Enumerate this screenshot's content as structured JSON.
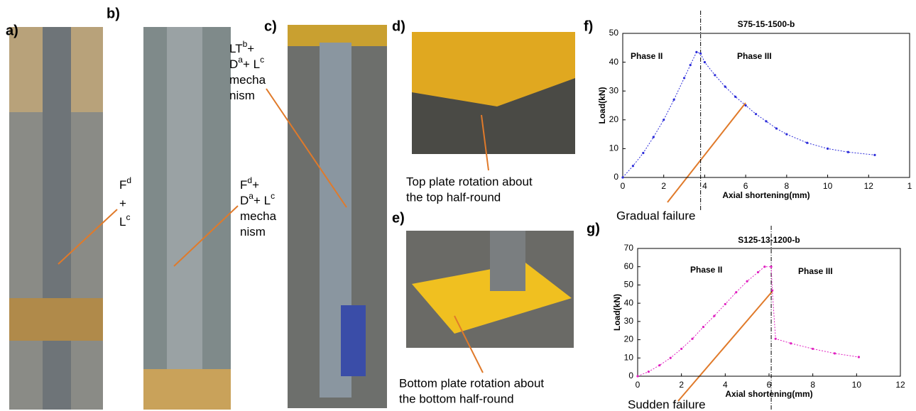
{
  "figure": {
    "panel_labels": [
      "a)",
      "b)",
      "c)",
      "d)",
      "e)",
      "f)",
      "g)"
    ],
    "annotations": [
      {
        "lines": [
          [
            {
              "text": "F"
            },
            {
              "text": "d",
              "sup": true
            }
          ],
          [
            {
              "text": "+"
            }
          ],
          [
            {
              "text": "L"
            },
            {
              "text": "c",
              "sup": true
            }
          ]
        ]
      },
      {
        "lines": [
          [
            {
              "text": "LT"
            },
            {
              "text": "b",
              "sup": true
            },
            {
              "text": "+"
            }
          ],
          [
            {
              "text": "D"
            },
            {
              "text": "a",
              "sup": true
            },
            {
              "text": "+ L"
            },
            {
              "text": "c",
              "sup": true
            }
          ],
          [
            {
              "text": "mecha"
            }
          ],
          [
            {
              "text": "nism"
            }
          ]
        ]
      },
      {
        "lines": [
          [
            {
              "text": "F"
            },
            {
              "text": "d",
              "sup": true
            },
            {
              "text": "+"
            }
          ],
          [
            {
              "text": "D"
            },
            {
              "text": "a",
              "sup": true
            },
            {
              "text": "+ L"
            },
            {
              "text": "c",
              "sup": true
            }
          ],
          [
            {
              "text": "mecha"
            }
          ],
          [
            {
              "text": "nism"
            }
          ]
        ]
      }
    ],
    "captions": [
      [
        "Top plate rotation about",
        "the top half-round"
      ],
      [
        "Bottom plate rotation about",
        "the bottom half-round"
      ]
    ]
  },
  "chart_data": [
    {
      "type": "line",
      "title": "S75-15-1500-b",
      "x_label": "Axial shortening(mm)",
      "y_label": "Load(kN)",
      "phase_labels": [
        "Phase II",
        "Phase III"
      ],
      "annotation": "Gradual failure",
      "failure_x": 3.8,
      "x": [
        0,
        0.5,
        1,
        1.5,
        2,
        2.5,
        3,
        3.3,
        3.6,
        3.8,
        4,
        4.5,
        5,
        5.5,
        6,
        6.5,
        7,
        7.5,
        8,
        9,
        10,
        11,
        12.3
      ],
      "series": [
        {
          "color": "#2b2bd9",
          "values": [
            0,
            4,
            8.5,
            14,
            20,
            27,
            34.5,
            39,
            43.5,
            43,
            40,
            35.5,
            31.5,
            28,
            25,
            22,
            19.5,
            17,
            15,
            12,
            10,
            8.8,
            7.8
          ]
        }
      ],
      "xlim": [
        0,
        14
      ],
      "xticks": [
        0,
        2,
        4,
        6,
        8,
        10,
        12,
        {
          "value": 14,
          "label": "1"
        }
      ],
      "ylim": [
        0,
        50
      ],
      "yticks": [
        0,
        10,
        20,
        30,
        40,
        50
      ]
    },
    {
      "type": "line",
      "title": "S125-13-1200-b",
      "x_label": "Axial shortening(mm)",
      "y_label": "Load(kN)",
      "phase_labels": [
        "Phase II",
        "Phase III"
      ],
      "annotation": "Sudden failure",
      "failure_x": 6.1,
      "x": [
        0,
        0.5,
        1,
        1.5,
        2,
        2.5,
        3,
        3.5,
        4,
        4.5,
        5,
        5.5,
        5.8,
        6.1,
        6.15,
        6.3,
        7,
        8,
        9,
        10.1
      ],
      "series": [
        {
          "color": "#e020c0",
          "values": [
            0,
            2.5,
            6,
            10,
            15,
            20.5,
            27,
            33,
            39.5,
            46,
            52,
            57,
            60,
            60,
            47,
            20.5,
            18,
            15,
            12.5,
            10.5
          ]
        }
      ],
      "xlim": [
        0,
        12
      ],
      "xticks": [
        0,
        2,
        4,
        6,
        8,
        10,
        12
      ],
      "ylim": [
        0,
        70
      ],
      "yticks": [
        0,
        10,
        20,
        30,
        40,
        50,
        60,
        70
      ]
    }
  ]
}
